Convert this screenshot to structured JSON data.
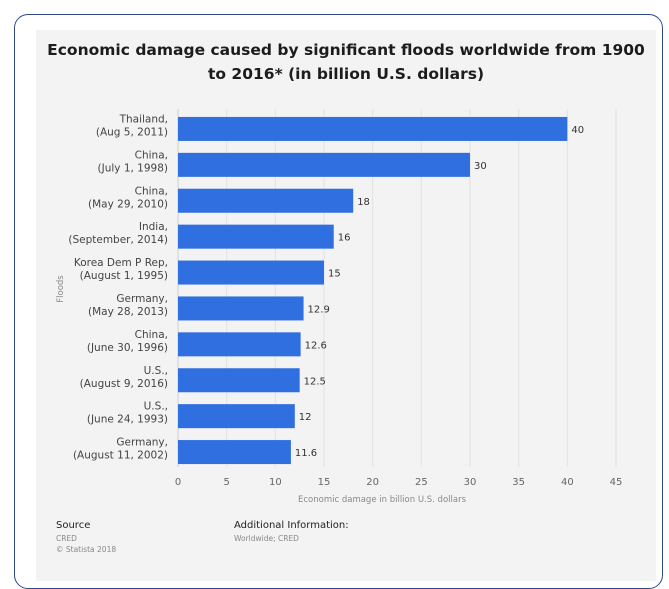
{
  "chart_data": {
    "type": "bar",
    "orientation": "horizontal",
    "title": "Economic damage caused by significant floods worldwide from 1900 to 2016* (in billion U.S. dollars)",
    "title_lines": [
      "Economic damage caused by significant floods worldwide from 1900",
      "to 2016* (in billion U.S. dollars)"
    ],
    "xlabel": "Economic damage in billion U.S. dollars",
    "ylabel": "Floods",
    "xlim": [
      0,
      45
    ],
    "ticks": [
      0,
      5,
      10,
      15,
      20,
      25,
      30,
      35,
      40,
      45
    ],
    "grid": true,
    "bar_color": "#2f6fdf",
    "categories": [
      [
        "Thailand,",
        "(Aug 5, 2011)"
      ],
      [
        "China,",
        "(July 1, 1998)"
      ],
      [
        "China,",
        "(May 29, 2010)"
      ],
      [
        "India,",
        "(September, 2014)"
      ],
      [
        "Korea Dem P Rep,",
        "(August 1, 1995)"
      ],
      [
        "Germany,",
        "(May 28, 2013)"
      ],
      [
        "China,",
        "(June 30, 1996)"
      ],
      [
        "U.S.,",
        "(August 9, 2016)"
      ],
      [
        "U.S.,",
        "(June 24, 1993)"
      ],
      [
        "Germany,",
        "(August 11, 2002)"
      ]
    ],
    "values": [
      40,
      30,
      18,
      16,
      15,
      12.9,
      12.6,
      12.5,
      12,
      11.6
    ]
  },
  "footer": {
    "source_heading": "Source",
    "source_lines": [
      "CRED",
      "© Statista 2018"
    ],
    "info_heading": "Additional Information:",
    "info_lines": [
      "Worldwide; CRED"
    ]
  }
}
